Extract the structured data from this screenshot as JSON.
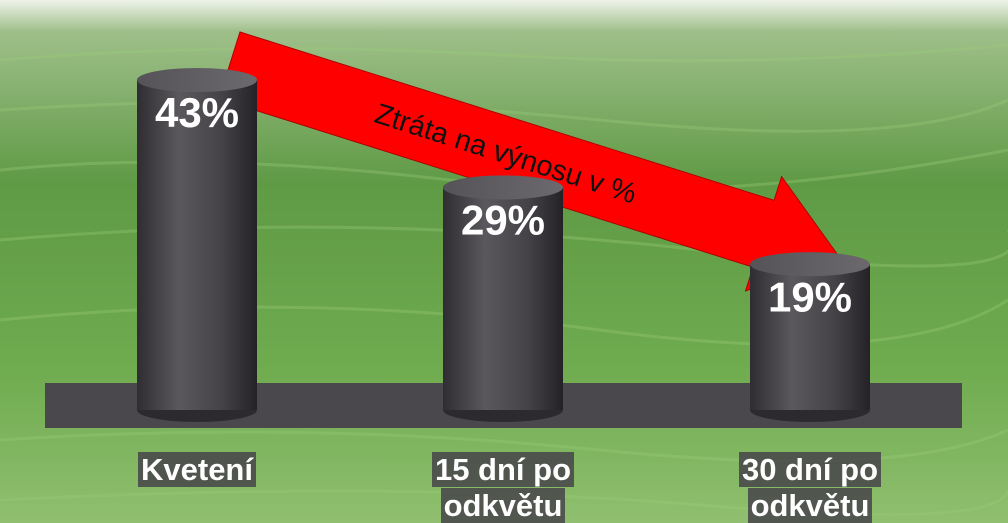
{
  "chart_data": {
    "type": "bar",
    "annotation": "Ztráta na výnosu v %",
    "categories": [
      "Kvetení",
      "15 dní po odkvětu",
      "30 dní po odkvětu"
    ],
    "values": [
      43,
      29,
      19
    ],
    "value_labels": [
      "43%",
      "29%",
      "19%"
    ],
    "color": "#4a484c"
  }
}
